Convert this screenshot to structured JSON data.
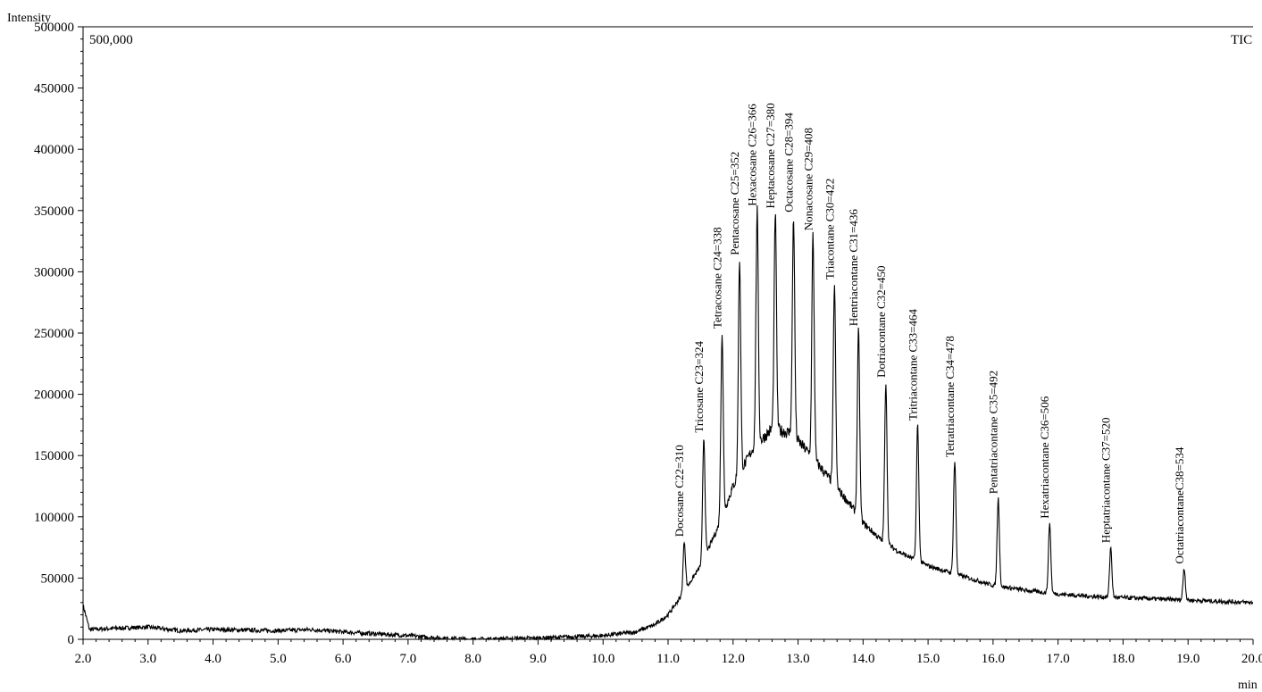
{
  "chart_data": {
    "type": "line",
    "ylabel": "Intensity",
    "xlabel": "min",
    "full_scale_label": "500,000",
    "trace_label": "TIC",
    "xlim": [
      2.0,
      20.0
    ],
    "ylim": [
      0,
      500000
    ],
    "x_ticks": [
      "2.0",
      "3.0",
      "4.0",
      "5.0",
      "6.0",
      "7.0",
      "8.0",
      "9.0",
      "10.0",
      "11.0",
      "12.0",
      "13.0",
      "14.0",
      "15.0",
      "16.0",
      "17.0",
      "18.0",
      "19.0",
      "20.0"
    ],
    "y_ticks": [
      "0",
      "50000",
      "100000",
      "150000",
      "200000",
      "250000",
      "300000",
      "350000",
      "400000",
      "450000",
      "500000"
    ],
    "series": [
      {
        "name": "TIC",
        "color": "#000000",
        "baseline_points": [
          {
            "x": 2.0,
            "y": 28000
          },
          {
            "x": 2.1,
            "y": 8000
          },
          {
            "x": 2.5,
            "y": 9000
          },
          {
            "x": 3.0,
            "y": 10000
          },
          {
            "x": 3.5,
            "y": 7000
          },
          {
            "x": 4.0,
            "y": 8000
          },
          {
            "x": 5.0,
            "y": 7000
          },
          {
            "x": 5.5,
            "y": 8000
          },
          {
            "x": 6.0,
            "y": 6000
          },
          {
            "x": 7.0,
            "y": 3000
          },
          {
            "x": 7.5,
            "y": 1000
          },
          {
            "x": 8.0,
            "y": 0
          },
          {
            "x": 9.0,
            "y": 1000
          },
          {
            "x": 10.0,
            "y": 3000
          },
          {
            "x": 10.5,
            "y": 6000
          },
          {
            "x": 10.8,
            "y": 12000
          },
          {
            "x": 11.0,
            "y": 20000
          },
          {
            "x": 11.2,
            "y": 35000
          },
          {
            "x": 11.5,
            "y": 60000
          },
          {
            "x": 11.8,
            "y": 95000
          },
          {
            "x": 12.0,
            "y": 125000
          },
          {
            "x": 12.3,
            "y": 155000
          },
          {
            "x": 12.6,
            "y": 172000
          },
          {
            "x": 12.9,
            "y": 168000
          },
          {
            "x": 13.2,
            "y": 150000
          },
          {
            "x": 13.5,
            "y": 130000
          },
          {
            "x": 13.8,
            "y": 110000
          },
          {
            "x": 14.0,
            "y": 95000
          },
          {
            "x": 14.3,
            "y": 80000
          },
          {
            "x": 14.6,
            "y": 70000
          },
          {
            "x": 15.0,
            "y": 60000
          },
          {
            "x": 15.5,
            "y": 52000
          },
          {
            "x": 16.0,
            "y": 44000
          },
          {
            "x": 16.5,
            "y": 40000
          },
          {
            "x": 17.0,
            "y": 37000
          },
          {
            "x": 17.5,
            "y": 35000
          },
          {
            "x": 18.0,
            "y": 34000
          },
          {
            "x": 19.0,
            "y": 32000
          },
          {
            "x": 20.0,
            "y": 30000
          }
        ]
      }
    ],
    "peaks": [
      {
        "x": 11.25,
        "y": 80000,
        "label": "Docosane C22=310"
      },
      {
        "x": 11.55,
        "y": 165000,
        "label": "Tricosane C23=324"
      },
      {
        "x": 11.83,
        "y": 250000,
        "label": "Tetracosane C24=338"
      },
      {
        "x": 12.1,
        "y": 310000,
        "label": "Pentacosane C25=352"
      },
      {
        "x": 12.37,
        "y": 350000,
        "label": "Hexacosane C26=366"
      },
      {
        "x": 12.65,
        "y": 348000,
        "label": "Heptacosane C27=380"
      },
      {
        "x": 12.93,
        "y": 345000,
        "label": "Octacosane C28=394"
      },
      {
        "x": 13.23,
        "y": 330000,
        "label": "Nonacosane C29=408"
      },
      {
        "x": 13.56,
        "y": 290000,
        "label": "Triacontane C30=422"
      },
      {
        "x": 13.93,
        "y": 252000,
        "label": "Hentriacontane C31=436"
      },
      {
        "x": 14.35,
        "y": 210000,
        "label": "Dotriacontane C32=450"
      },
      {
        "x": 14.84,
        "y": 175000,
        "label": "Tritriacontane C33=464"
      },
      {
        "x": 15.41,
        "y": 145000,
        "label": "Tetratriacontane C34=478"
      },
      {
        "x": 16.08,
        "y": 115000,
        "label": "Pentatriacontane C35=492"
      },
      {
        "x": 16.87,
        "y": 95000,
        "label": "Hexatriacontane C36=506"
      },
      {
        "x": 17.81,
        "y": 75000,
        "label": "Heptatriacontane C37=520"
      },
      {
        "x": 18.94,
        "y": 58000,
        "label": "OctatriacontaneC38=534"
      }
    ],
    "grid": false,
    "legend": "none"
  }
}
